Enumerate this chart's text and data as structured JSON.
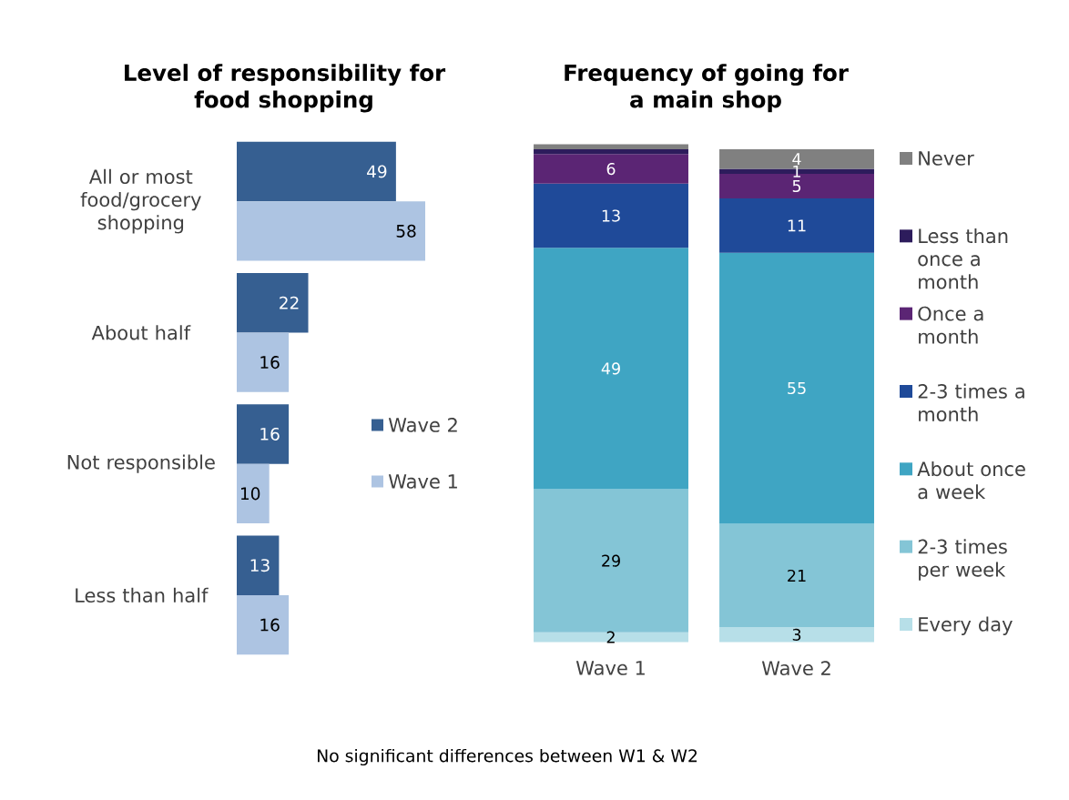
{
  "chart_data": [
    {
      "type": "bar",
      "orientation": "horizontal",
      "title": "Level of responsibility for food shopping",
      "categories": [
        "All or most food/grocery shopping",
        "About half",
        "Not responsible",
        "Less than half"
      ],
      "series": [
        {
          "name": "Wave 2",
          "color": "#365f91",
          "values": [
            49,
            22,
            16,
            13
          ]
        },
        {
          "name": "Wave 1",
          "color": "#adc4e2",
          "values": [
            58,
            16,
            10,
            16
          ]
        }
      ],
      "data_labels": true,
      "legend": "right",
      "tick_labels": "y"
    },
    {
      "type": "bar",
      "stacked": true,
      "title": "Frequency of going for a main shop",
      "categories": [
        "Wave 1",
        "Wave 2"
      ],
      "series": [
        {
          "name": "Every day",
          "color": "#b7dfe8",
          "values": [
            2,
            3
          ]
        },
        {
          "name": "2-3 times per week",
          "color": "#84c5d6",
          "values": [
            29,
            21
          ]
        },
        {
          "name": "About once a week",
          "color": "#3fa5c3",
          "values": [
            49,
            55
          ]
        },
        {
          "name": "2-3 times a month",
          "color": "#1f4a99",
          "values": [
            13,
            11
          ]
        },
        {
          "name": "Once a month",
          "color": "#5b2574",
          "values": [
            6,
            5
          ]
        },
        {
          "name": "Less than once a month",
          "color": "#2d1c5c",
          "values": [
            1,
            1
          ],
          "value_labels": [
            null,
            "1"
          ]
        },
        {
          "name": "Never",
          "color": "#808080",
          "values": [
            1,
            4
          ],
          "value_labels": [
            null,
            "4"
          ]
        }
      ],
      "ylim": [
        0,
        101
      ],
      "data_labels": true,
      "legend": "right",
      "tick_labels": "x",
      "annotations": [
        "No significant differences between W1 & W2"
      ]
    }
  ]
}
